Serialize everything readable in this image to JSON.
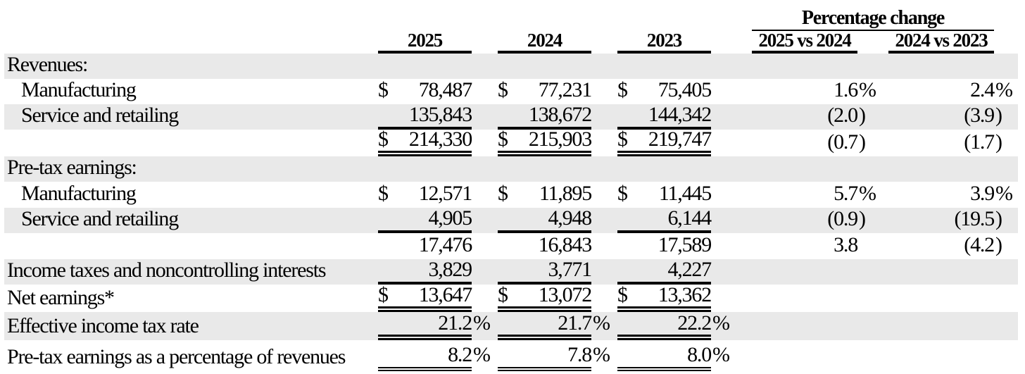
{
  "colors": {
    "stripe": "#e9e9e9",
    "rule": "#000000",
    "text": "#000000",
    "background": "#ffffff"
  },
  "table": {
    "group_header": "Percentage change",
    "year_headers": [
      "2025",
      "2024",
      "2023"
    ],
    "pct_headers": [
      "2025 vs 2024",
      "2024 vs 2023"
    ],
    "rows": [
      {
        "label": "Revenues:",
        "indent": false,
        "shaded": true,
        "rule": "none",
        "cells": [
          null,
          null,
          null,
          null,
          null
        ]
      },
      {
        "label": "Manufacturing",
        "indent": true,
        "shaded": false,
        "rule": "none",
        "cells": [
          {
            "cur": "$",
            "val": "78,487",
            "suf": ""
          },
          {
            "cur": "$",
            "val": "77,231",
            "suf": ""
          },
          {
            "cur": "$",
            "val": "75,405",
            "suf": ""
          },
          {
            "cur": "",
            "val": "1.6",
            "suf": "%"
          },
          {
            "cur": "",
            "val": "2.4",
            "suf": "%"
          }
        ]
      },
      {
        "label": "Service and retailing",
        "indent": true,
        "shaded": true,
        "rule": "single",
        "cells": [
          {
            "cur": "",
            "val": "135,843",
            "suf": ""
          },
          {
            "cur": "",
            "val": "138,672",
            "suf": ""
          },
          {
            "cur": "",
            "val": "144,342",
            "suf": ""
          },
          {
            "cur": "",
            "val": "(2.0",
            "suf": ")"
          },
          {
            "cur": "",
            "val": "(3.9",
            "suf": ")"
          }
        ]
      },
      {
        "label": "",
        "indent": false,
        "shaded": false,
        "rule": "double",
        "cells": [
          {
            "cur": "$",
            "val": "214,330",
            "suf": ""
          },
          {
            "cur": "$",
            "val": "215,903",
            "suf": ""
          },
          {
            "cur": "$",
            "val": "219,747",
            "suf": ""
          },
          {
            "cur": "",
            "val": "(0.7",
            "suf": ")"
          },
          {
            "cur": "",
            "val": "(1.7",
            "suf": ")"
          }
        ]
      },
      {
        "label": "Pre-tax earnings:",
        "indent": false,
        "shaded": true,
        "rule": "none",
        "cells": [
          null,
          null,
          null,
          null,
          null
        ]
      },
      {
        "label": "Manufacturing",
        "indent": true,
        "shaded": false,
        "rule": "none",
        "cells": [
          {
            "cur": "$",
            "val": "12,571",
            "suf": ""
          },
          {
            "cur": "$",
            "val": "11,895",
            "suf": ""
          },
          {
            "cur": "$",
            "val": "11,445",
            "suf": ""
          },
          {
            "cur": "",
            "val": "5.7",
            "suf": "%"
          },
          {
            "cur": "",
            "val": "3.9",
            "suf": "%"
          }
        ]
      },
      {
        "label": "Service and retailing",
        "indent": true,
        "shaded": true,
        "rule": "single",
        "cells": [
          {
            "cur": "",
            "val": "4,905",
            "suf": ""
          },
          {
            "cur": "",
            "val": "4,948",
            "suf": ""
          },
          {
            "cur": "",
            "val": "6,144",
            "suf": ""
          },
          {
            "cur": "",
            "val": "(0.9",
            "suf": ")"
          },
          {
            "cur": "",
            "val": "(19.5",
            "suf": ")"
          }
        ]
      },
      {
        "label": "",
        "indent": false,
        "shaded": false,
        "rule": "none",
        "cells": [
          {
            "cur": "",
            "val": "17,476",
            "suf": ""
          },
          {
            "cur": "",
            "val": "16,843",
            "suf": ""
          },
          {
            "cur": "",
            "val": "17,589",
            "suf": ""
          },
          {
            "cur": "",
            "val": "3.8",
            "suf": ""
          },
          {
            "cur": "",
            "val": "(4.2",
            "suf": ")"
          }
        ]
      },
      {
        "label": "Income taxes and noncontrolling interests",
        "indent": false,
        "shaded": true,
        "rule": "single",
        "cells": [
          {
            "cur": "",
            "val": "3,829",
            "suf": ""
          },
          {
            "cur": "",
            "val": "3,771",
            "suf": ""
          },
          {
            "cur": "",
            "val": "4,227",
            "suf": ""
          },
          null,
          null
        ]
      },
      {
        "label": "Net earnings*",
        "indent": false,
        "shaded": false,
        "rule": "double",
        "cells": [
          {
            "cur": "$",
            "val": "13,647",
            "suf": ""
          },
          {
            "cur": "$",
            "val": "13,072",
            "suf": ""
          },
          {
            "cur": "$",
            "val": "13,362",
            "suf": ""
          },
          null,
          null
        ]
      },
      {
        "label": "Effective income tax rate",
        "indent": false,
        "shaded": true,
        "rule": "double",
        "cells": [
          {
            "cur": "",
            "val": "21.2",
            "suf": "%"
          },
          {
            "cur": "",
            "val": "21.7",
            "suf": "%"
          },
          {
            "cur": "",
            "val": "22.2",
            "suf": "%"
          },
          null,
          null
        ]
      },
      {
        "label": "Pre-tax earnings as a percentage of revenues",
        "indent": false,
        "shaded": false,
        "rule": "double6",
        "cells": [
          {
            "cur": "",
            "val": "8.2",
            "suf": "%"
          },
          {
            "cur": "",
            "val": "7.8",
            "suf": "%"
          },
          {
            "cur": "",
            "val": "8.0",
            "suf": "%"
          },
          null,
          null
        ]
      }
    ]
  }
}
